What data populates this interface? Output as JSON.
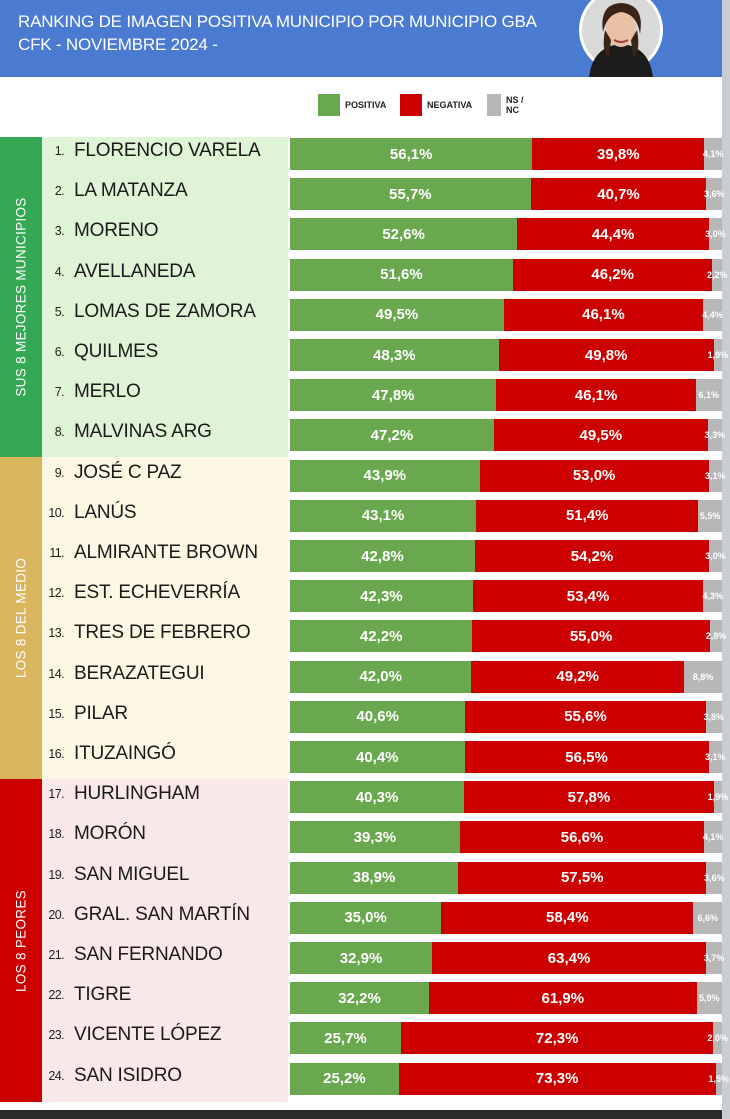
{
  "header": {
    "title_line1": "RANKING DE IMAGEN POSITIVA MUNICIPIO POR MUNICIPIO GBA",
    "title_line2": "CFK - NOVIEMBRE 2024 -",
    "background_color": "#4a7bd0"
  },
  "legend": {
    "positive": {
      "label": "POSITIVA",
      "color": "#6aa84f"
    },
    "negative": {
      "label": "NEGATIVA",
      "color": "#cc0000"
    },
    "nsnc": {
      "label": "NS / NC",
      "color": "#b7b7b7"
    }
  },
  "groups": [
    {
      "label": "SUS 8 MEJORES MUNICIPIOS",
      "color": "#34a853",
      "row_bg": "#dff3d6"
    },
    {
      "label": "LOS 8 DEL MEDIO",
      "color": "#d9b55e",
      "row_bg": "#fdf8e3"
    },
    {
      "label": "LOS 8 PEORES",
      "color": "#cc0000",
      "row_bg": "#f9e8e8"
    }
  ],
  "chart_data": {
    "type": "bar",
    "stacked": true,
    "orientation": "horizontal",
    "categories": [
      "FLORENCIO VARELA",
      "LA MATANZA",
      "MORENO",
      "AVELLANEDA",
      "LOMAS DE ZAMORA",
      "QUILMES",
      "MERLO",
      "MALVINAS ARG",
      "JOSÉ C PAZ",
      "LANÚS",
      "ALMIRANTE BROWN",
      "EST. ECHEVERRÍA",
      "TRES DE FEBRERO",
      "BERAZATEGUI",
      "PILAR",
      "ITUZAINGÓ",
      "HURLINGHAM",
      "MORÓN",
      "SAN MIGUEL",
      "GRAL. SAN MARTÍN",
      "SAN FERNANDO",
      "TIGRE",
      "VICENTE LÓPEZ",
      "SAN ISIDRO"
    ],
    "ranks": [
      "1.",
      "2.",
      "3.",
      "4.",
      "5.",
      "6.",
      "7.",
      "8.",
      "9.",
      "10.",
      "11.",
      "12.",
      "13.",
      "14.",
      "15.",
      "16.",
      "17.",
      "18.",
      "19.",
      "20.",
      "21.",
      "22.",
      "23.",
      "24."
    ],
    "series": [
      {
        "name": "POSITIVA",
        "values": [
          56.1,
          55.7,
          52.6,
          51.6,
          49.5,
          48.3,
          47.8,
          47.2,
          43.9,
          43.1,
          42.8,
          42.3,
          42.2,
          42.0,
          40.6,
          40.4,
          40.3,
          39.3,
          38.9,
          35.0,
          32.9,
          32.2,
          25.7,
          25.2
        ]
      },
      {
        "name": "NEGATIVA",
        "values": [
          39.8,
          40.7,
          44.4,
          46.2,
          46.1,
          49.8,
          46.1,
          49.5,
          53.0,
          51.4,
          54.2,
          53.4,
          55.0,
          49.2,
          55.6,
          56.5,
          57.8,
          56.6,
          57.5,
          58.4,
          63.4,
          61.9,
          72.3,
          73.3
        ]
      },
      {
        "name": "NS / NC",
        "values": [
          4.1,
          3.6,
          3.0,
          2.2,
          4.4,
          1.9,
          6.1,
          3.3,
          3.1,
          5.5,
          3.0,
          4.3,
          2.8,
          8.8,
          3.8,
          3.1,
          1.9,
          4.1,
          3.6,
          6.6,
          3.7,
          5.9,
          2.0,
          1.5
        ]
      }
    ],
    "value_labels": {
      "pos": [
        "56,1%",
        "55,7%",
        "52,6%",
        "51,6%",
        "49,5%",
        "48,3%",
        "47,8%",
        "47,2%",
        "43,9%",
        "43,1%",
        "42,8%",
        "42,3%",
        "42,2%",
        "42,0%",
        "40,6%",
        "40,4%",
        "40,3%",
        "39,3%",
        "38,9%",
        "35,0%",
        "32,9%",
        "32,2%",
        "25,7%",
        "25,2%"
      ],
      "neg": [
        "39,8%",
        "40,7%",
        "44,4%",
        "46,2%",
        "46,1%",
        "49,8%",
        "46,1%",
        "49,5%",
        "53,0%",
        "51,4%",
        "54,2%",
        "53,4%",
        "55,0%",
        "49,2%",
        "55,6%",
        "56,5%",
        "57,8%",
        "56,6%",
        "57,5%",
        "58,4%",
        "63,4%",
        "61,9%",
        "72,3%",
        "73,3%"
      ],
      "ns": [
        "4,1%",
        "3,6%",
        "3,0%",
        "2,2%",
        "4,4%",
        "1,9%",
        "6,1%",
        "3,3%",
        "3,1%",
        "5,5%",
        "3,0%",
        "4,3%",
        "2,8%",
        "8,8%",
        "3,8%",
        "3,1%",
        "1,9%",
        "4,1%",
        "3,6%",
        "6,6%",
        "3,7%",
        "5,9%",
        "2,0%",
        "1,5%"
      ]
    }
  }
}
